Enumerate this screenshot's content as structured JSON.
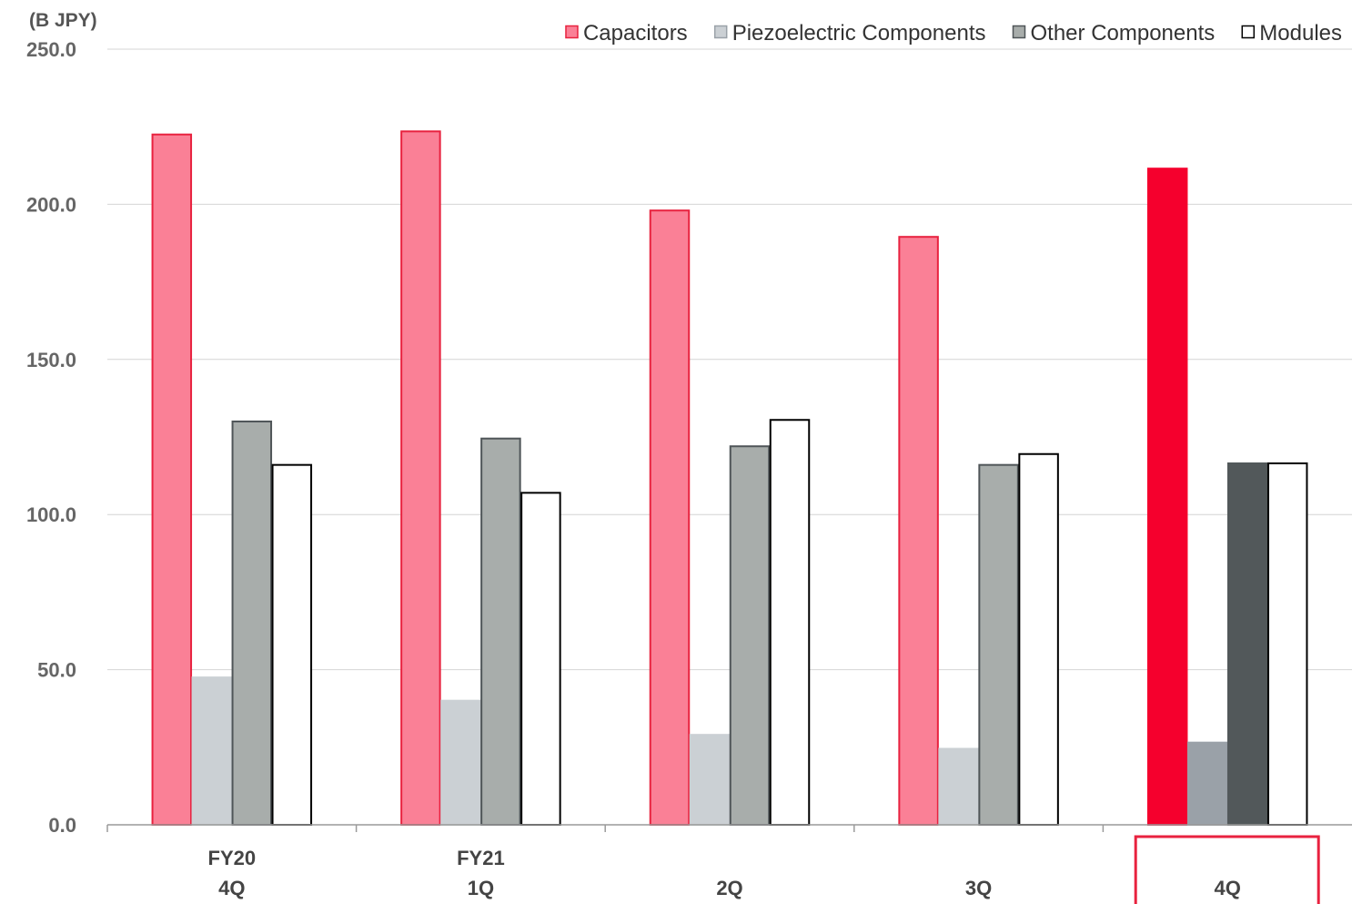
{
  "chart_data": {
    "type": "bar",
    "unit_label": "(B JPY)",
    "categories": [
      [
        "FY20",
        "4Q"
      ],
      [
        "FY21",
        "1Q"
      ],
      [
        "",
        "2Q"
      ],
      [
        "",
        "3Q"
      ],
      [
        "",
        "4Q"
      ]
    ],
    "highlighted_category": 4,
    "series": [
      {
        "name": "Capacitors",
        "values": [
          222.5,
          223.5,
          198.0,
          189.5,
          211.5
        ],
        "color": "#fa8096",
        "edge": "#e8223f",
        "highlight_color": "#f5002d",
        "highlight_edge": "#f5002d"
      },
      {
        "name": "Piezoelectric Components",
        "values": [
          47.5,
          40.0,
          29.0,
          24.5,
          26.5
        ],
        "color": "#cbd0d4",
        "edge": "#cbd0d4",
        "highlight_color": "#9aa1a8",
        "highlight_edge": "#9aa1a8"
      },
      {
        "name": "Other Components",
        "values": [
          130.0,
          124.5,
          122.0,
          116.0,
          116.5
        ],
        "color": "#a8adab",
        "edge": "#4f5558",
        "highlight_color": "#52585a",
        "highlight_edge": "#52585a"
      },
      {
        "name": "Modules",
        "values": [
          116.0,
          107.0,
          130.5,
          119.5,
          116.5
        ],
        "color": "#ffffff",
        "edge": "#000000",
        "highlight_color": "#ffffff",
        "highlight_edge": "#000000"
      }
    ],
    "ylim": [
      0,
      250
    ],
    "yticks": [
      "0.0",
      "50.0",
      "100.0",
      "150.0",
      "200.0",
      "250.0"
    ],
    "grid": true,
    "legend_position": "top-right",
    "highlight_box_color": "#e8223f"
  }
}
